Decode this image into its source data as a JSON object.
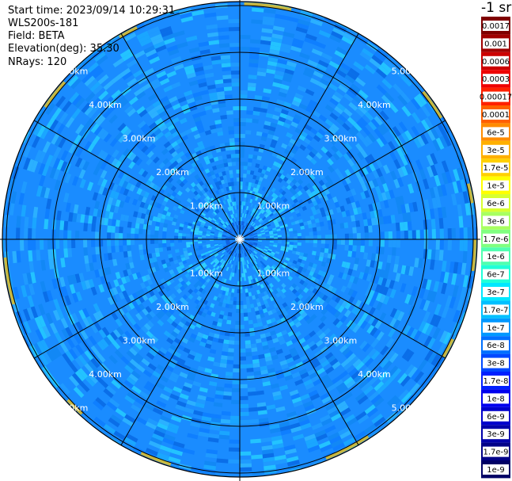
{
  "header": {
    "start_time": "Start time: 2023/09/14 10:29:31",
    "instrument": "WLS200s-181",
    "field": "Field: BETA",
    "elevation": "Elevation(deg): 35.30",
    "nrays": "NRays: 120"
  },
  "plot": {
    "ring_labels": [
      "1.00km",
      "2.00km",
      "3.00km",
      "4.00km",
      "5.00km"
    ],
    "spoke_count": 12,
    "colors": {
      "background_field": "#1a8cff",
      "grid": "#000000",
      "ring_label": "#ffffff"
    }
  },
  "colorbar": {
    "unit": "-1 sr",
    "labels": [
      "0.0017",
      "0.001",
      "0.0006",
      "0.0003",
      "0.00017",
      "0.0001",
      "6e-5",
      "3e-5",
      "1.7e-5",
      "1e-5",
      "6e-6",
      "3e-6",
      "1.7e-6",
      "1e-6",
      "6e-7",
      "3e-7",
      "1.7e-7",
      "1e-7",
      "6e-8",
      "3e-8",
      "1.7e-8",
      "1e-8",
      "6e-9",
      "3e-9",
      "1.7e-9",
      "1e-9"
    ],
    "colors": [
      "#7f0000",
      "#a00000",
      "#cc0000",
      "#ee0000",
      "#ff2000",
      "#ff6000",
      "#ff8c00",
      "#ffb000",
      "#ffd000",
      "#ffff00",
      "#d8ff30",
      "#a8ff60",
      "#80ff80",
      "#50ffb0",
      "#20ffd8",
      "#00e8ff",
      "#00c0ff",
      "#0098ff",
      "#0070ff",
      "#0048ff",
      "#0020ff",
      "#0000ee",
      "#0000cc",
      "#0000aa",
      "#000088",
      "#000066"
    ]
  }
}
